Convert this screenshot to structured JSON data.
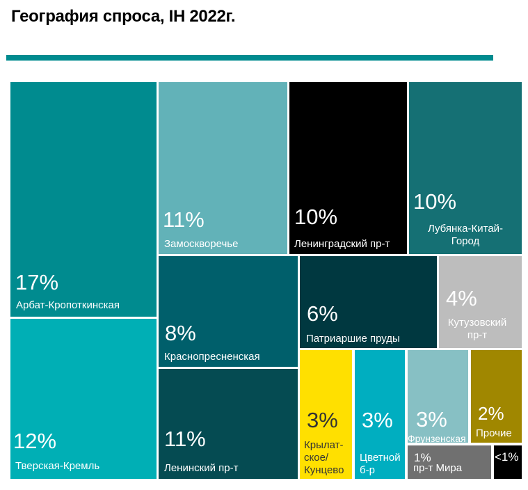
{
  "title": "География спроса, IH 2022г.",
  "colors": {
    "accent": "#008B8F"
  },
  "chart_data": {
    "type": "treemap",
    "title": "География спроса, IH 2022г.",
    "items": [
      {
        "label": "Арбат-Кропоткинская",
        "value": "17%",
        "color": "#008B8F"
      },
      {
        "label": "Тверская-Кремль",
        "value": "12%",
        "color": "#00AFB5"
      },
      {
        "label": "Замоскворечье",
        "value": "11%",
        "color": "#62B2B8"
      },
      {
        "label": "Ленинградский пр-т",
        "value": "10%",
        "color": "#000000"
      },
      {
        "label": "Лубянка-Китай-Город",
        "value": "10%",
        "color": "#157074"
      },
      {
        "label": "Краснопресненская",
        "value": "8%",
        "color": "#005F6B"
      },
      {
        "label": "Ленинский пр-т",
        "value": "11%",
        "color": "#054B52"
      },
      {
        "label": "Патриаршие  пруды",
        "value": "6%",
        "color": "#003840"
      },
      {
        "label": "Кутузовский пр-т",
        "value": "4%",
        "color": "#BDBDBD"
      },
      {
        "label": "Крылат-ское/Кунцево",
        "value": "3%",
        "color": "#FFE000"
      },
      {
        "label": "Цветной б-р",
        "value": "3%",
        "color": "#00AEC0"
      },
      {
        "label": "Фрунзенская",
        "value": "3%",
        "color": "#87C0C4"
      },
      {
        "label": "Прочие",
        "value": "2%",
        "color": "#A08700"
      },
      {
        "label": "пр-т Мира",
        "value": "1%",
        "color": "#707070"
      },
      {
        "label": "",
        "value": "<1%",
        "color": "#000000"
      }
    ]
  }
}
